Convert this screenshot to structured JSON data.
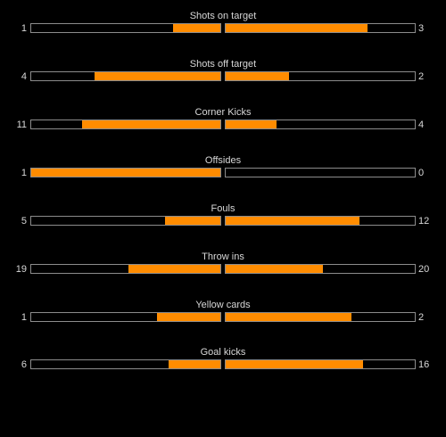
{
  "colors": {
    "background": "#000000",
    "fill": "#ff8c00",
    "border": "#8c8c8c",
    "text": "#d8d8d8"
  },
  "stats": [
    {
      "title": "Shots on target",
      "home": "1",
      "away": "3",
      "home_fill": 0.25,
      "away_fill": 0.75
    },
    {
      "title": "Shots off target",
      "home": "4",
      "away": "2",
      "home_fill": 0.667,
      "away_fill": 0.333
    },
    {
      "title": "Corner Kicks",
      "home": "11",
      "away": "4",
      "home_fill": 0.733,
      "away_fill": 0.267
    },
    {
      "title": "Offsides",
      "home": "1",
      "away": "0",
      "home_fill": 1.0,
      "away_fill": 0.0
    },
    {
      "title": "Fouls",
      "home": "5",
      "away": "12",
      "home_fill": 0.294,
      "away_fill": 0.706
    },
    {
      "title": "Throw ins",
      "home": "19",
      "away": "20",
      "home_fill": 0.487,
      "away_fill": 0.513
    },
    {
      "title": "Yellow cards",
      "home": "1",
      "away": "2",
      "home_fill": 0.333,
      "away_fill": 0.667
    },
    {
      "title": "Goal kicks",
      "home": "6",
      "away": "16",
      "home_fill": 0.273,
      "away_fill": 0.727
    }
  ]
}
